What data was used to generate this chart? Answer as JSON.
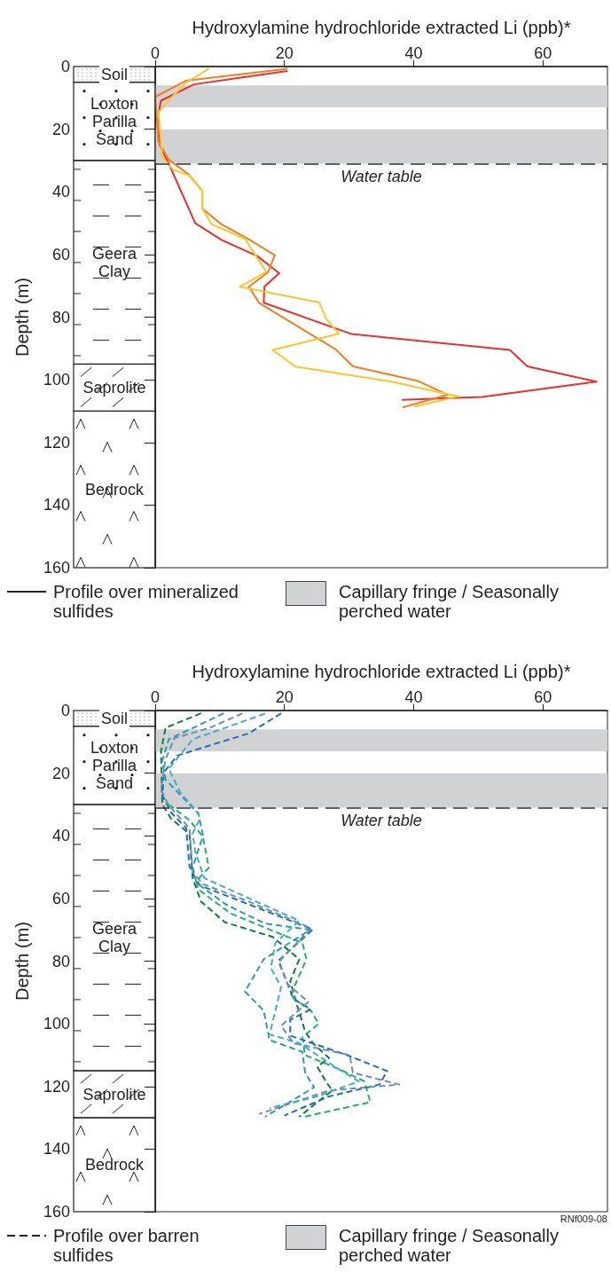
{
  "chart_data": [
    {
      "type": "line",
      "xlabel": "Hydroxylamine hydrochloride extracted Li (ppb)*",
      "ylabel": "Depth (m)",
      "xlim": [
        0,
        70
      ],
      "xticks": [
        0,
        20,
        40,
        60
      ],
      "ylim": [
        160,
        0
      ],
      "yticks": [
        0,
        20,
        40,
        60,
        80,
        100,
        120,
        140,
        160
      ],
      "grid": false,
      "legend": "bottom",
      "marker": "none",
      "line_style": "solid",
      "series": [
        {
          "color": "#e8312a",
          "x": [
            20.5,
            6.0,
            0.9,
            0.5,
            0.7,
            2.1,
            6.2,
            10.3,
            15.8,
            19.2,
            16.9,
            16.8,
            30.4,
            54.9,
            57.6,
            68.3,
            50.6,
            38.2
          ],
          "values": [
            1.4,
            5.7,
            10.9,
            15,
            25,
            31,
            50,
            55.4,
            60.5,
            66,
            70.3,
            75.4,
            85.4,
            90.5,
            95.7,
            100.6,
            105.5,
            106.4
          ]
        },
        {
          "color": "#f07f22",
          "x": [
            20.5,
            4.8,
            0,
            0.2,
            0.5,
            2.1,
            5.2,
            7.3,
            7.3,
            10.2,
            14.7,
            18.5,
            17.5,
            14.5,
            16.1,
            28,
            30.6,
            40.7,
            45.3,
            38.3
          ],
          "values": [
            0.7,
            4.5,
            9.7,
            14.6,
            24,
            29.7,
            34.5,
            39.7,
            45.3,
            50.3,
            55.4,
            60.2,
            65.6,
            70.3,
            75.5,
            90.4,
            95.7,
            100.4,
            104.8,
            108.8
          ]
        },
        {
          "color": "#fdc530",
          "x": [
            8.3,
            4.8,
            2.5,
            0.5,
            1.1,
            2.8,
            5.5,
            7.3,
            7.3,
            8.7,
            13.9,
            17.2,
            13.1,
            25.4,
            26.4,
            28.4,
            18.2,
            21.7,
            36.6,
            46.9,
            40.1
          ],
          "values": [
            0.7,
            5.1,
            9.9,
            14.6,
            28.8,
            33,
            35,
            39.7,
            45.3,
            50.3,
            55,
            65.6,
            70.3,
            75.3,
            80.3,
            85.3,
            90.5,
            95.8,
            100.6,
            105.3,
            108.6
          ]
        }
      ],
      "bands": [
        {
          "axis": "y",
          "from": 6,
          "to": 13,
          "label": "Capillary fringe / Seasonally perched water",
          "color": "#d1d2d4"
        },
        {
          "axis": "y",
          "from": 20,
          "to": 31,
          "color": "#d1d2d4"
        }
      ],
      "ref_lines": [
        {
          "axis": "y",
          "value": 31,
          "label": "Water table",
          "line_style": "dashed"
        }
      ],
      "annotations": [
        "Soil",
        "Loxton Parilla Sand",
        "Geera Clay",
        "Saprolite",
        "Bedrock",
        "Profile over mineralized sulfides"
      ]
    },
    {
      "type": "line",
      "xlabel": "Hydroxylamine hydrochloride extracted Li (ppb)*",
      "ylabel": "Depth (m)",
      "xlim": [
        0,
        70
      ],
      "xticks": [
        0,
        20,
        40,
        60
      ],
      "ylim": [
        160,
        0
      ],
      "yticks": [
        0,
        20,
        40,
        60,
        80,
        100,
        120,
        140,
        160
      ],
      "grid": false,
      "legend": "bottom",
      "marker": "none",
      "line_style": "dashed",
      "series": [
        {
          "color": "#137a3f",
          "x": [
            7.1,
            1.6,
            0.9,
            1.1,
            2.5,
            5.3,
            5.8,
            7.1,
            10.8,
            18.2,
            22.3,
            20.9,
            21.8,
            23.2,
            24.4,
            26.9,
            25.1,
            26.4,
            27.4,
            25.1,
            22.3
          ],
          "values": [
            0.9,
            5.5,
            13,
            30,
            34.6,
            39.3,
            53.5,
            61,
            67.6,
            72.3,
            79.4,
            86.4,
            93,
            102.4,
            106.2,
            110.9,
            113.7,
            118.4,
            121.3,
            125,
            129.7
          ]
        },
        {
          "color": "#1fb36b",
          "x": [
            2.1,
            5.3,
            7.4,
            8.3,
            6.4,
            6.6,
            11.7,
            17.7,
            22.8,
            23.4,
            20.9,
            24.1,
            25.3,
            22.8,
            23.2,
            28.7,
            32.4,
            33.3,
            23
          ],
          "values": [
            30,
            35,
            40.3,
            50.2,
            54.4,
            57,
            64.8,
            69.9,
            74.2,
            79.4,
            91.1,
            95.8,
            100,
            104.3,
            110,
            114.7,
            118.4,
            125,
            129.7
          ]
        },
        {
          "color": "#1f6fc0",
          "x": [
            19.5,
            14.5,
            8.5,
            3.4,
            1.4,
            1.1,
            2.5,
            4.8,
            5.3,
            6.2,
            6.9,
            14.5,
            24.4,
            19.1,
            21.4,
            24.1,
            20.9,
            20.9,
            29.7,
            35.9,
            34.7,
            26.9,
            20
          ],
          "values": [
            0.9,
            7.3,
            11.1,
            14.4,
            19.6,
            27,
            32.7,
            37.5,
            49.7,
            53.5,
            55.8,
            61.9,
            69.9,
            79.8,
            92.1,
            95.4,
            98.7,
            103.8,
            110,
            115.1,
            119.4,
            123.2,
            129.3
          ]
        },
        {
          "color": "#6c8db8",
          "x": [
            13.5,
            8.5,
            3,
            1.6,
            0.9,
            2.1,
            5.3,
            5.8,
            7.4,
            14.5,
            24.1,
            19.1,
            20.5,
            23.7,
            19.5,
            21.4,
            30.1,
            30.6,
            37.8,
            26.9,
            16.1
          ],
          "values": [
            0.9,
            5.5,
            8.8,
            15.5,
            25.2,
            30.4,
            37.5,
            51.6,
            55.4,
            61,
            69.5,
            80.3,
            87.4,
            93,
            100.6,
            106.2,
            110,
            115.6,
            119.4,
            121.3,
            128.8
          ]
        },
        {
          "color": "#2f9bb3",
          "x": [
            10.6,
            2.1,
            1.1,
            1.6,
            6.7,
            7.4,
            5.8,
            6.4,
            11,
            17,
            24,
            16.8,
            13.9,
            16.8,
            17.7,
            22.8,
            23.2,
            24.6,
            17
          ],
          "values": [
            0.9,
            9.2,
            16,
            22,
            33,
            40,
            50,
            55,
            62,
            68,
            70,
            79.4,
            89.7,
            95.8,
            105.2,
            109,
            115.6,
            120.3,
            129.7
          ]
        },
        {
          "color": "#45aacb",
          "x": [
            17,
            5.8,
            2.1,
            3.9,
            6.7,
            6.9,
            5.8,
            6.2,
            7.6,
            17.7,
            22.3,
            18.6,
            17.9,
            19.5,
            17.7,
            22.3,
            27.8,
            31.5,
            25.1,
            17.7
          ],
          "values": [
            1,
            9.2,
            18.6,
            26.2,
            32.8,
            34.6,
            39.3,
            45,
            53.5,
            62.9,
            67.1,
            74.2,
            82.2,
            88.3,
            103.4,
            106.2,
            113.7,
            118.4,
            123.2,
            126.9
          ]
        }
      ],
      "bands": [
        {
          "axis": "y",
          "from": 6,
          "to": 13,
          "label": "Capillary fringe / Seasonally perched water",
          "color": "#d1d2d4"
        },
        {
          "axis": "y",
          "from": 20,
          "to": 31,
          "color": "#d1d2d4"
        }
      ],
      "ref_lines": [
        {
          "axis": "y",
          "value": 31,
          "label": "Water table",
          "line_style": "dashed"
        }
      ],
      "annotations": [
        "Soil",
        "Loxton Parilla Sand",
        "Geera Clay",
        "Saprolite",
        "Bedrock",
        "Profile over barren sulfides",
        "RNf009-08"
      ]
    }
  ]
}
